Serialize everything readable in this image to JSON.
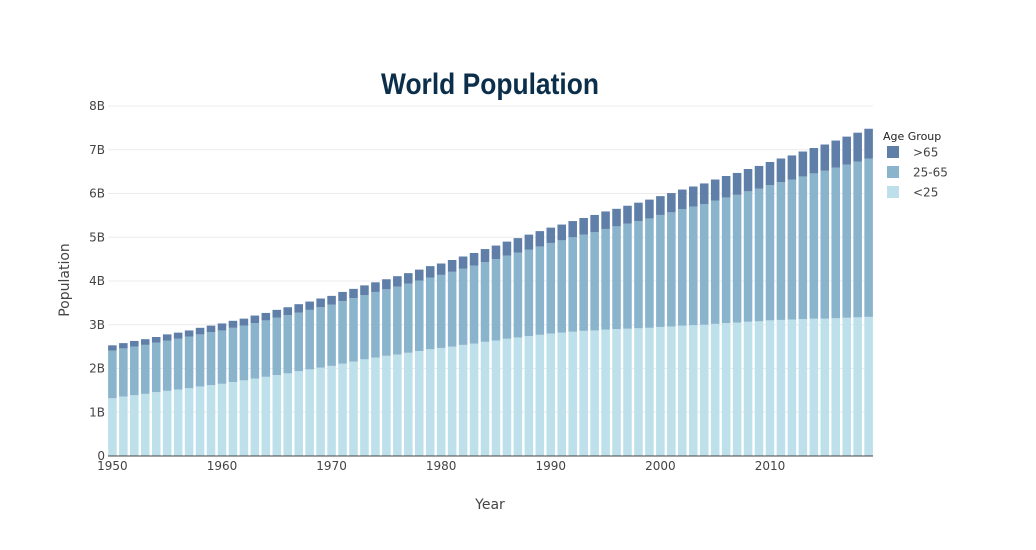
{
  "chart_data": {
    "type": "bar",
    "stacked": true,
    "title": "World Population",
    "xlabel": "Year",
    "ylabel": "Population",
    "ylim": [
      0,
      8000000000
    ],
    "y_ticks": [
      {
        "value": 0,
        "label": "0"
      },
      {
        "value": 1000000000,
        "label": "1B"
      },
      {
        "value": 2000000000,
        "label": "2B"
      },
      {
        "value": 3000000000,
        "label": "3B"
      },
      {
        "value": 4000000000,
        "label": "4B"
      },
      {
        "value": 5000000000,
        "label": "5B"
      },
      {
        "value": 6000000000,
        "label": "6B"
      },
      {
        "value": 7000000000,
        "label": "7B"
      },
      {
        "value": 8000000000,
        "label": "8B"
      }
    ],
    "x_ticks": [
      {
        "value": 1950,
        "label": "1950"
      },
      {
        "value": 1960,
        "label": "1960"
      },
      {
        "value": 1970,
        "label": "1970"
      },
      {
        "value": 1980,
        "label": "1980"
      },
      {
        "value": 1990,
        "label": "1990"
      },
      {
        "value": 2000,
        "label": "2000"
      },
      {
        "value": 2010,
        "label": "2010"
      }
    ],
    "xlim": [
      1949.6,
      2019.4
    ],
    "grid": true,
    "legend_title": "Age Group",
    "legend_position": "top-right",
    "x": [
      1950,
      1951,
      1952,
      1953,
      1954,
      1955,
      1956,
      1957,
      1958,
      1959,
      1960,
      1961,
      1962,
      1963,
      1964,
      1965,
      1966,
      1967,
      1968,
      1969,
      1970,
      1971,
      1972,
      1973,
      1974,
      1975,
      1976,
      1977,
      1978,
      1979,
      1980,
      1981,
      1982,
      1983,
      1984,
      1985,
      1986,
      1987,
      1988,
      1989,
      1990,
      1991,
      1992,
      1993,
      1994,
      1995,
      1996,
      1997,
      1998,
      1999,
      2000,
      2001,
      2002,
      2003,
      2004,
      2005,
      2006,
      2007,
      2008,
      2009,
      2010,
      2011,
      2012,
      2013,
      2014,
      2015,
      2016,
      2017,
      2018,
      2019
    ],
    "series": [
      {
        "name": "<25",
        "color": "#bde0eb",
        "values": [
          1.32,
          1.36,
          1.39,
          1.42,
          1.46,
          1.49,
          1.52,
          1.55,
          1.59,
          1.62,
          1.65,
          1.69,
          1.73,
          1.77,
          1.81,
          1.85,
          1.89,
          1.94,
          1.98,
          2.02,
          2.06,
          2.11,
          2.16,
          2.21,
          2.25,
          2.29,
          2.32,
          2.36,
          2.4,
          2.44,
          2.47,
          2.5,
          2.54,
          2.57,
          2.61,
          2.64,
          2.68,
          2.71,
          2.74,
          2.77,
          2.8,
          2.82,
          2.84,
          2.86,
          2.87,
          2.89,
          2.9,
          2.91,
          2.92,
          2.93,
          2.95,
          2.96,
          2.98,
          2.99,
          3.0,
          3.02,
          3.04,
          3.05,
          3.07,
          3.08,
          3.1,
          3.11,
          3.12,
          3.13,
          3.14,
          3.14,
          3.15,
          3.16,
          3.17,
          3.18
        ]
      },
      {
        "name": "25-65",
        "color": "#8ab3cc",
        "values": [
          1.09,
          1.1,
          1.11,
          1.12,
          1.13,
          1.15,
          1.16,
          1.18,
          1.19,
          1.21,
          1.22,
          1.24,
          1.25,
          1.27,
          1.29,
          1.31,
          1.33,
          1.34,
          1.36,
          1.38,
          1.4,
          1.43,
          1.45,
          1.47,
          1.5,
          1.52,
          1.55,
          1.58,
          1.61,
          1.64,
          1.67,
          1.71,
          1.74,
          1.78,
          1.82,
          1.86,
          1.9,
          1.94,
          1.98,
          2.02,
          2.07,
          2.11,
          2.16,
          2.2,
          2.25,
          2.3,
          2.35,
          2.4,
          2.45,
          2.5,
          2.56,
          2.61,
          2.66,
          2.71,
          2.76,
          2.82,
          2.87,
          2.92,
          2.98,
          3.03,
          3.09,
          3.15,
          3.2,
          3.26,
          3.32,
          3.38,
          3.44,
          3.5,
          3.56,
          3.62
        ]
      },
      {
        "name": ">65",
        "color": "#5f7fa8",
        "values": [
          0.12,
          0.12,
          0.13,
          0.13,
          0.13,
          0.14,
          0.14,
          0.14,
          0.15,
          0.15,
          0.16,
          0.16,
          0.16,
          0.17,
          0.17,
          0.18,
          0.18,
          0.19,
          0.19,
          0.2,
          0.2,
          0.21,
          0.21,
          0.22,
          0.22,
          0.23,
          0.24,
          0.24,
          0.25,
          0.26,
          0.26,
          0.27,
          0.28,
          0.29,
          0.3,
          0.31,
          0.32,
          0.33,
          0.34,
          0.35,
          0.35,
          0.36,
          0.37,
          0.38,
          0.39,
          0.4,
          0.4,
          0.41,
          0.42,
          0.43,
          0.43,
          0.44,
          0.45,
          0.46,
          0.47,
          0.48,
          0.49,
          0.5,
          0.51,
          0.52,
          0.53,
          0.54,
          0.55,
          0.57,
          0.58,
          0.6,
          0.62,
          0.64,
          0.66,
          0.68
        ]
      }
    ],
    "value_unit_multiplier": 1000000000
  }
}
